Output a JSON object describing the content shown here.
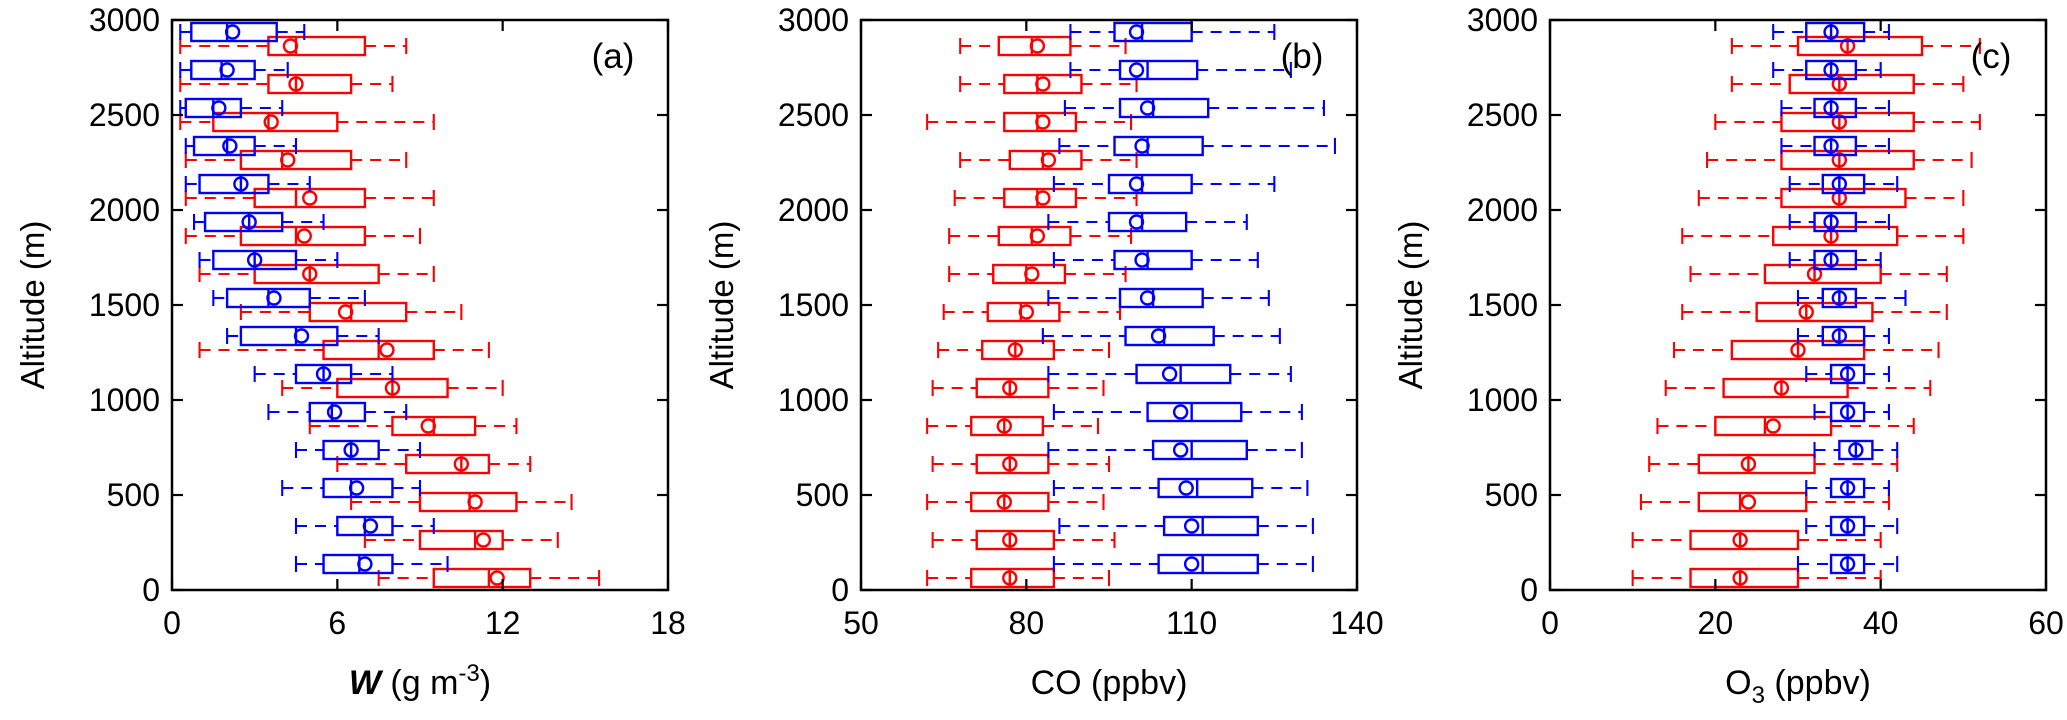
{
  "figure": {
    "description": "Three-panel horizontal box-and-whisker profile figure comparing two cases (red and blue) versus altitude",
    "background": "#ffffff",
    "frame_color": "#000000"
  },
  "chart_data": [
    {
      "type": "boxplot-horizontal",
      "panel_label": "(a)",
      "xlabel": [
        {
          "t": "W",
          "s": "bi"
        },
        {
          "t": "  (g m",
          "s": "n"
        },
        {
          "t": "-3",
          "s": "sup"
        },
        {
          "t": ")",
          "s": "n"
        }
      ],
      "xlim": [
        0,
        18
      ],
      "xticks": [
        0,
        6,
        12,
        18
      ],
      "ylabel": "Altitude (m)",
      "ylim": [
        0,
        3000
      ],
      "yticks": [
        0,
        500,
        1000,
        1500,
        2000,
        2500,
        3000
      ],
      "grid": false,
      "legend": "none",
      "altitudes": [
        100,
        300,
        500,
        700,
        900,
        1100,
        1300,
        1500,
        1700,
        1900,
        2100,
        2300,
        2500,
        2700,
        2900
      ],
      "box_format": [
        "whisker_low",
        "q1",
        "median",
        "q3",
        "whisker_high",
        "mean"
      ],
      "series": [
        {
          "name": "red-case",
          "color": "#ff0000",
          "boxes": [
            [
              7.5,
              9.5,
              11.5,
              13,
              15.5,
              11.8
            ],
            [
              7,
              9,
              11,
              12,
              14,
              11.3
            ],
            [
              6.5,
              9,
              10.8,
              12.5,
              14.5,
              11
            ],
            [
              6,
              8.5,
              10.5,
              11.5,
              13,
              10.5
            ],
            [
              5,
              8,
              9.5,
              11,
              12.5,
              9.3
            ],
            [
              4,
              6,
              8,
              10,
              12,
              8
            ],
            [
              1,
              5.5,
              7.5,
              9.5,
              11.5,
              7.8
            ],
            [
              2.5,
              5,
              6.5,
              8.5,
              10.5,
              6.3
            ],
            [
              1,
              3,
              5,
              7.5,
              9.5,
              5
            ],
            [
              0.5,
              2.5,
              4.5,
              7,
              9,
              4.8
            ],
            [
              0.5,
              3,
              4.5,
              7,
              9.5,
              5
            ],
            [
              0.5,
              2.5,
              4,
              6.5,
              8.5,
              4.2
            ],
            [
              0.3,
              1.5,
              3.5,
              6,
              9.5,
              3.6
            ],
            [
              0.3,
              3.5,
              4.5,
              6.5,
              8,
              4.5
            ],
            [
              0.3,
              3.5,
              4.5,
              7,
              8.5,
              4.3
            ]
          ]
        },
        {
          "name": "blue-case",
          "color": "#0000ff",
          "boxes": [
            [
              4.5,
              5.5,
              6.8,
              8,
              10,
              7
            ],
            [
              4.5,
              6,
              7,
              8,
              9.5,
              7.2
            ],
            [
              4,
              5.5,
              6.5,
              8,
              9,
              6.7
            ],
            [
              4.5,
              5.5,
              6.5,
              7.5,
              9,
              6.5
            ],
            [
              3.5,
              5,
              5.8,
              7,
              8.5,
              5.9
            ],
            [
              3,
              4.5,
              5.5,
              6.5,
              8,
              5.5
            ],
            [
              2,
              2.5,
              4.5,
              6,
              7.5,
              4.7
            ],
            [
              1.5,
              2,
              3.5,
              5,
              7,
              3.7
            ],
            [
              1,
              1.5,
              3,
              4.5,
              6,
              3
            ],
            [
              0.8,
              1.2,
              2.8,
              4,
              5.5,
              2.8
            ],
            [
              0.5,
              1,
              2.5,
              3.5,
              5,
              2.5
            ],
            [
              0.5,
              0.8,
              2,
              3,
              4.5,
              2.1
            ],
            [
              0.3,
              0.5,
              1.5,
              2.5,
              4,
              1.7
            ],
            [
              0.3,
              0.7,
              1.8,
              3,
              4.2,
              2
            ],
            [
              0.3,
              0.7,
              2,
              3.8,
              4.8,
              2.2
            ]
          ]
        }
      ]
    },
    {
      "type": "boxplot-horizontal",
      "panel_label": "(b)",
      "xlabel": [
        {
          "t": "CO (ppbv)",
          "s": "n"
        }
      ],
      "xlim": [
        50,
        140
      ],
      "xticks": [
        50,
        80,
        110,
        140
      ],
      "ylabel": "Altitude (m)",
      "ylim": [
        0,
        3000
      ],
      "yticks": [
        0,
        500,
        1000,
        1500,
        2000,
        2500,
        3000
      ],
      "grid": false,
      "legend": "none",
      "altitudes": [
        100,
        300,
        500,
        700,
        900,
        1100,
        1300,
        1500,
        1700,
        1900,
        2100,
        2300,
        2500,
        2700,
        2900
      ],
      "box_format": [
        "whisker_low",
        "q1",
        "median",
        "q3",
        "whisker_high",
        "mean"
      ],
      "series": [
        {
          "name": "red-case",
          "color": "#ff0000",
          "boxes": [
            [
              62,
              70,
              77,
              85,
              95,
              77
            ],
            [
              63,
              71,
              77,
              85,
              96,
              77
            ],
            [
              62,
              70,
              76,
              84,
              94,
              76
            ],
            [
              63,
              71,
              77,
              84,
              95,
              77
            ],
            [
              62,
              70,
              76,
              83,
              93,
              76
            ],
            [
              63,
              71,
              77,
              84,
              94,
              77
            ],
            [
              64,
              72,
              78,
              85,
              95,
              78
            ],
            [
              65,
              73,
              79,
              86,
              97,
              80
            ],
            [
              66,
              74,
              80,
              87,
              98,
              81
            ],
            [
              66,
              75,
              81,
              88,
              99,
              82
            ],
            [
              67,
              76,
              82,
              89,
              100,
              83
            ],
            [
              68,
              77,
              83,
              90,
              100,
              84
            ],
            [
              62,
              76,
              82,
              89,
              99,
              83
            ],
            [
              68,
              76,
              82,
              90,
              100,
              83
            ],
            [
              68,
              75,
              81,
              88,
              98,
              82
            ]
          ]
        },
        {
          "name": "blue-case",
          "color": "#0000ff",
          "boxes": [
            [
              85,
              104,
              112,
              122,
              132,
              110
            ],
            [
              86,
              105,
              112,
              122,
              132,
              110
            ],
            [
              85,
              104,
              111,
              121,
              131,
              109
            ],
            [
              84,
              103,
              110,
              120,
              130,
              108
            ],
            [
              85,
              102,
              110,
              119,
              130,
              108
            ],
            [
              84,
              100,
              108,
              117,
              128,
              106
            ],
            [
              83,
              98,
              105,
              114,
              126,
              104
            ],
            [
              84,
              97,
              103,
              112,
              124,
              102
            ],
            [
              85,
              96,
              102,
              110,
              122,
              101
            ],
            [
              84,
              95,
              101,
              109,
              120,
              100
            ],
            [
              85,
              95,
              101,
              110,
              125,
              100
            ],
            [
              86,
              96,
              102,
              112,
              136,
              101
            ],
            [
              87,
              97,
              103,
              113,
              134,
              102
            ],
            [
              88,
              97,
              102,
              111,
              128,
              100
            ],
            [
              88,
              96,
              101,
              110,
              125,
              100
            ]
          ]
        }
      ]
    },
    {
      "type": "boxplot-horizontal",
      "panel_label": "(c)",
      "xlabel": [
        {
          "t": "O",
          "s": "n"
        },
        {
          "t": "3",
          "s": "sub"
        },
        {
          "t": " (ppbv)",
          "s": "n"
        }
      ],
      "xlim": [
        0,
        60
      ],
      "xticks": [
        0,
        20,
        40,
        60
      ],
      "ylabel": "Altitude (m)",
      "ylim": [
        0,
        3000
      ],
      "yticks": [
        0,
        500,
        1000,
        1500,
        2000,
        2500,
        3000
      ],
      "grid": false,
      "legend": "none",
      "altitudes": [
        100,
        300,
        500,
        700,
        900,
        1100,
        1300,
        1500,
        1700,
        1900,
        2100,
        2300,
        2500,
        2700,
        2900
      ],
      "box_format": [
        "whisker_low",
        "q1",
        "median",
        "q3",
        "whisker_high",
        "mean"
      ],
      "series": [
        {
          "name": "red-case",
          "color": "#ff0000",
          "boxes": [
            [
              10,
              17,
              23,
              30,
              40,
              23
            ],
            [
              10,
              17,
              23,
              30,
              40,
              23
            ],
            [
              11,
              18,
              23,
              31,
              41,
              24
            ],
            [
              12,
              18,
              24,
              32,
              42,
              24
            ],
            [
              13,
              20,
              26,
              34,
              44,
              27
            ],
            [
              14,
              21,
              28,
              36,
              46,
              28
            ],
            [
              15,
              22,
              30,
              38,
              47,
              30
            ],
            [
              16,
              25,
              31,
              39,
              48,
              31
            ],
            [
              17,
              26,
              32,
              40,
              48,
              32
            ],
            [
              16,
              27,
              34,
              42,
              50,
              34
            ],
            [
              18,
              28,
              35,
              43,
              50,
              35
            ],
            [
              19,
              28,
              35,
              44,
              51,
              35
            ],
            [
              20,
              28,
              35,
              44,
              52,
              35
            ],
            [
              22,
              29,
              35,
              44,
              50,
              35
            ],
            [
              22,
              30,
              36,
              45,
              52,
              36
            ]
          ]
        },
        {
          "name": "blue-case",
          "color": "#0000ff",
          "boxes": [
            [
              30,
              34,
              36,
              38,
              42,
              36
            ],
            [
              31,
              34,
              36,
              38,
              42,
              36
            ],
            [
              31,
              34,
              36,
              38,
              41,
              36
            ],
            [
              32,
              35,
              37,
              39,
              42,
              37
            ],
            [
              32,
              34,
              36,
              38,
              41,
              36
            ],
            [
              31,
              34,
              36,
              38,
              41,
              36
            ],
            [
              30,
              33,
              35,
              38,
              41,
              35
            ],
            [
              30,
              33,
              35,
              37,
              43,
              35
            ],
            [
              29,
              32,
              34,
              37,
              40,
              34
            ],
            [
              29,
              32,
              34,
              37,
              41,
              34
            ],
            [
              29,
              33,
              35,
              38,
              42,
              35
            ],
            [
              28,
              32,
              34,
              37,
              41,
              34
            ],
            [
              28,
              32,
              34,
              37,
              41,
              34
            ],
            [
              27,
              31,
              34,
              37,
              40,
              34
            ],
            [
              27,
              31,
              34,
              38,
              41,
              34
            ]
          ]
        }
      ]
    }
  ]
}
